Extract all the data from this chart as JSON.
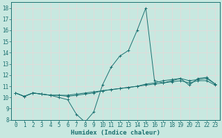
{
  "xlabel": "Humidex (Indice chaleur)",
  "xlim": [
    -0.5,
    23.5
  ],
  "ylim": [
    8,
    18.5
  ],
  "xticks": [
    0,
    1,
    2,
    3,
    4,
    5,
    6,
    7,
    8,
    9,
    10,
    11,
    12,
    13,
    14,
    15,
    16,
    17,
    18,
    19,
    20,
    21,
    22,
    23
  ],
  "yticks": [
    8,
    9,
    10,
    11,
    12,
    13,
    14,
    15,
    16,
    17,
    18
  ],
  "bg_color": "#c8e8e0",
  "line_color": "#1a7070",
  "grid_color": "#e8d8d8",
  "series": [
    [
      10.4,
      10.1,
      10.4,
      10.3,
      10.2,
      10.0,
      9.8,
      8.5,
      7.8,
      8.7,
      11.1,
      12.7,
      13.7,
      14.2,
      16.0,
      18.0,
      11.5,
      11.3,
      11.5,
      11.7,
      11.1,
      11.7,
      11.8,
      11.2
    ],
    [
      10.4,
      10.1,
      10.4,
      10.3,
      10.2,
      10.2,
      10.1,
      10.2,
      10.3,
      10.4,
      10.6,
      10.7,
      10.8,
      10.9,
      11.0,
      11.1,
      11.2,
      11.3,
      11.4,
      11.5,
      11.3,
      11.5,
      11.5,
      11.1
    ],
    [
      10.4,
      10.1,
      10.4,
      10.3,
      10.2,
      10.2,
      10.2,
      10.3,
      10.4,
      10.5,
      10.6,
      10.7,
      10.8,
      10.9,
      11.0,
      11.2,
      11.3,
      11.5,
      11.6,
      11.7,
      11.5,
      11.6,
      11.7,
      11.2
    ]
  ],
  "tick_fontsize": 5.5,
  "xlabel_fontsize": 6.5
}
